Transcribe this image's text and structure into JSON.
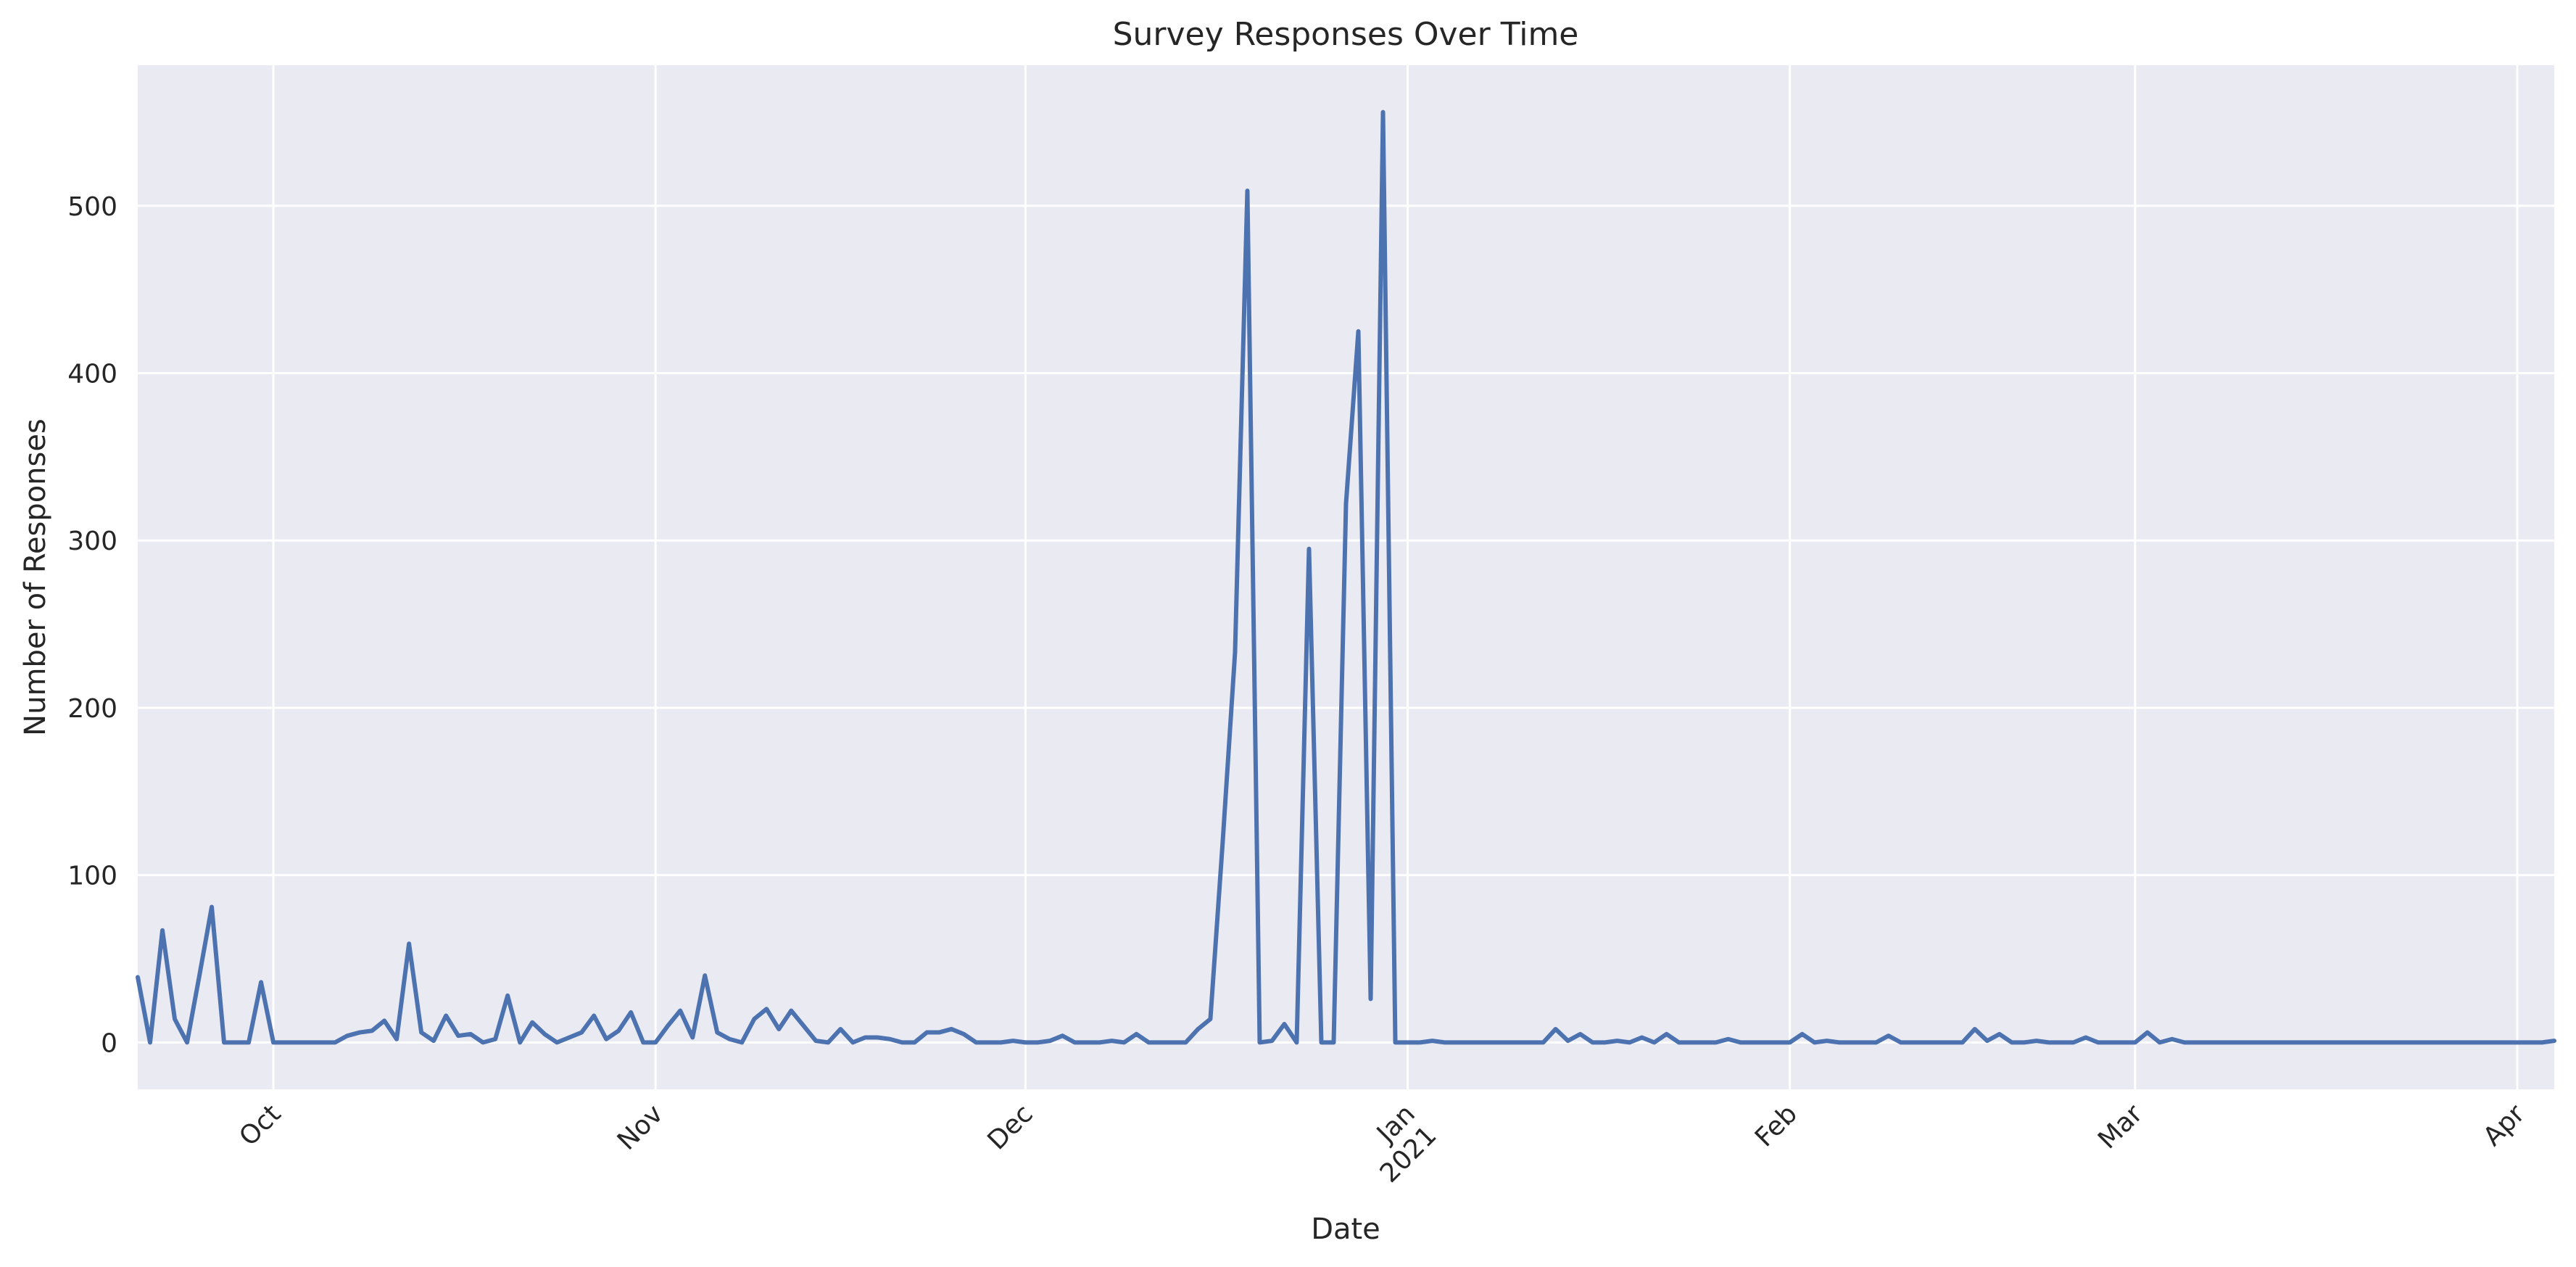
{
  "chart_data": {
    "type": "line",
    "title": "Survey Responses Over Time",
    "xlabel": "Date",
    "ylabel": "Number of Responses",
    "xlim": [
      "2020-09-20",
      "2021-04-04"
    ],
    "ylim": [
      -28,
      584
    ],
    "grid": true,
    "colors": {
      "background": "#eaeaf2",
      "line": "#4c72b0",
      "grid": "#ffffff",
      "text": "#262626"
    },
    "x_ticks": [
      {
        "date": "2020-10-01",
        "label": "Oct"
      },
      {
        "date": "2020-11-01",
        "label": "Nov"
      },
      {
        "date": "2020-12-01",
        "label": "Dec"
      },
      {
        "date": "2021-01-01",
        "label": "Jan",
        "sublabel": "2021"
      },
      {
        "date": "2021-02-01",
        "label": "Feb"
      },
      {
        "date": "2021-03-01",
        "label": "Mar"
      },
      {
        "date": "2021-04-01",
        "label": "Apr"
      }
    ],
    "y_ticks": [
      0,
      100,
      200,
      300,
      400,
      500
    ],
    "series": [
      {
        "points": [
          [
            "2020-09-20",
            39
          ],
          [
            "2020-09-21",
            0
          ],
          [
            "2020-09-22",
            67
          ],
          [
            "2020-09-23",
            14
          ],
          [
            "2020-09-24",
            0
          ],
          [
            "2020-09-25",
            40
          ],
          [
            "2020-09-26",
            81
          ],
          [
            "2020-09-27",
            0
          ],
          [
            "2020-09-28",
            0
          ],
          [
            "2020-09-29",
            0
          ],
          [
            "2020-09-30",
            36
          ],
          [
            "2020-10-01",
            0
          ],
          [
            "2020-10-02",
            0
          ],
          [
            "2020-10-03",
            0
          ],
          [
            "2020-10-04",
            0
          ],
          [
            "2020-10-05",
            0
          ],
          [
            "2020-10-06",
            0
          ],
          [
            "2020-10-07",
            4
          ],
          [
            "2020-10-08",
            6
          ],
          [
            "2020-10-09",
            7
          ],
          [
            "2020-10-10",
            13
          ],
          [
            "2020-10-11",
            2
          ],
          [
            "2020-10-12",
            59
          ],
          [
            "2020-10-13",
            6
          ],
          [
            "2020-10-14",
            1
          ],
          [
            "2020-10-15",
            16
          ],
          [
            "2020-10-16",
            4
          ],
          [
            "2020-10-17",
            5
          ],
          [
            "2020-10-18",
            0
          ],
          [
            "2020-10-19",
            2
          ],
          [
            "2020-10-20",
            28
          ],
          [
            "2020-10-21",
            0
          ],
          [
            "2020-10-22",
            12
          ],
          [
            "2020-10-23",
            5
          ],
          [
            "2020-10-24",
            0
          ],
          [
            "2020-10-25",
            3
          ],
          [
            "2020-10-26",
            6
          ],
          [
            "2020-10-27",
            16
          ],
          [
            "2020-10-28",
            2
          ],
          [
            "2020-10-29",
            7
          ],
          [
            "2020-10-30",
            18
          ],
          [
            "2020-10-31",
            0
          ],
          [
            "2020-11-01",
            0
          ],
          [
            "2020-11-02",
            10
          ],
          [
            "2020-11-03",
            19
          ],
          [
            "2020-11-04",
            3
          ],
          [
            "2020-11-05",
            40
          ],
          [
            "2020-11-06",
            6
          ],
          [
            "2020-11-07",
            2
          ],
          [
            "2020-11-08",
            0
          ],
          [
            "2020-11-09",
            14
          ],
          [
            "2020-11-10",
            20
          ],
          [
            "2020-11-11",
            8
          ],
          [
            "2020-11-12",
            19
          ],
          [
            "2020-11-13",
            10
          ],
          [
            "2020-11-14",
            1
          ],
          [
            "2020-11-15",
            0
          ],
          [
            "2020-11-16",
            8
          ],
          [
            "2020-11-17",
            0
          ],
          [
            "2020-11-18",
            3
          ],
          [
            "2020-11-19",
            3
          ],
          [
            "2020-11-20",
            2
          ],
          [
            "2020-11-21",
            0
          ],
          [
            "2020-11-22",
            0
          ],
          [
            "2020-11-23",
            6
          ],
          [
            "2020-11-24",
            6
          ],
          [
            "2020-11-25",
            8
          ],
          [
            "2020-11-26",
            5
          ],
          [
            "2020-11-27",
            0
          ],
          [
            "2020-11-28",
            0
          ],
          [
            "2020-11-29",
            0
          ],
          [
            "2020-11-30",
            1
          ],
          [
            "2020-12-01",
            0
          ],
          [
            "2020-12-02",
            0
          ],
          [
            "2020-12-03",
            1
          ],
          [
            "2020-12-04",
            4
          ],
          [
            "2020-12-05",
            0
          ],
          [
            "2020-12-06",
            0
          ],
          [
            "2020-12-07",
            0
          ],
          [
            "2020-12-08",
            1
          ],
          [
            "2020-12-09",
            0
          ],
          [
            "2020-12-10",
            5
          ],
          [
            "2020-12-11",
            0
          ],
          [
            "2020-12-12",
            0
          ],
          [
            "2020-12-13",
            0
          ],
          [
            "2020-12-14",
            0
          ],
          [
            "2020-12-15",
            8
          ],
          [
            "2020-12-16",
            14
          ],
          [
            "2020-12-17",
            120
          ],
          [
            "2020-12-18",
            233
          ],
          [
            "2020-12-19",
            509
          ],
          [
            "2020-12-20",
            0
          ],
          [
            "2020-12-21",
            1
          ],
          [
            "2020-12-22",
            11
          ],
          [
            "2020-12-23",
            0
          ],
          [
            "2020-12-24",
            295
          ],
          [
            "2020-12-25",
            0
          ],
          [
            "2020-12-26",
            0
          ],
          [
            "2020-12-27",
            322
          ],
          [
            "2020-12-28",
            425
          ],
          [
            "2020-12-29",
            26
          ],
          [
            "2020-12-30",
            556
          ],
          [
            "2020-12-31",
            0
          ],
          [
            "2021-01-01",
            0
          ],
          [
            "2021-01-02",
            0
          ],
          [
            "2021-01-03",
            1
          ],
          [
            "2021-01-04",
            0
          ],
          [
            "2021-01-05",
            0
          ],
          [
            "2021-01-06",
            0
          ],
          [
            "2021-01-07",
            0
          ],
          [
            "2021-01-08",
            0
          ],
          [
            "2021-01-09",
            0
          ],
          [
            "2021-01-10",
            0
          ],
          [
            "2021-01-11",
            0
          ],
          [
            "2021-01-12",
            0
          ],
          [
            "2021-01-13",
            8
          ],
          [
            "2021-01-14",
            1
          ],
          [
            "2021-01-15",
            5
          ],
          [
            "2021-01-16",
            0
          ],
          [
            "2021-01-17",
            0
          ],
          [
            "2021-01-18",
            1
          ],
          [
            "2021-01-19",
            0
          ],
          [
            "2021-01-20",
            3
          ],
          [
            "2021-01-21",
            0
          ],
          [
            "2021-01-22",
            5
          ],
          [
            "2021-01-23",
            0
          ],
          [
            "2021-01-24",
            0
          ],
          [
            "2021-01-25",
            0
          ],
          [
            "2021-01-26",
            0
          ],
          [
            "2021-01-27",
            2
          ],
          [
            "2021-01-28",
            0
          ],
          [
            "2021-01-29",
            0
          ],
          [
            "2021-01-30",
            0
          ],
          [
            "2021-01-31",
            0
          ],
          [
            "2021-02-01",
            0
          ],
          [
            "2021-02-02",
            5
          ],
          [
            "2021-02-03",
            0
          ],
          [
            "2021-02-04",
            1
          ],
          [
            "2021-02-05",
            0
          ],
          [
            "2021-02-06",
            0
          ],
          [
            "2021-02-07",
            0
          ],
          [
            "2021-02-08",
            0
          ],
          [
            "2021-02-09",
            4
          ],
          [
            "2021-02-10",
            0
          ],
          [
            "2021-02-11",
            0
          ],
          [
            "2021-02-12",
            0
          ],
          [
            "2021-02-13",
            0
          ],
          [
            "2021-02-14",
            0
          ],
          [
            "2021-02-15",
            0
          ],
          [
            "2021-02-16",
            8
          ],
          [
            "2021-02-17",
            1
          ],
          [
            "2021-02-18",
            5
          ],
          [
            "2021-02-19",
            0
          ],
          [
            "2021-02-20",
            0
          ],
          [
            "2021-02-21",
            1
          ],
          [
            "2021-02-22",
            0
          ],
          [
            "2021-02-23",
            0
          ],
          [
            "2021-02-24",
            0
          ],
          [
            "2021-02-25",
            3
          ],
          [
            "2021-02-26",
            0
          ],
          [
            "2021-02-27",
            0
          ],
          [
            "2021-02-28",
            0
          ],
          [
            "2021-03-01",
            0
          ],
          [
            "2021-03-02",
            6
          ],
          [
            "2021-03-03",
            0
          ],
          [
            "2021-03-04",
            2
          ],
          [
            "2021-03-05",
            0
          ],
          [
            "2021-03-06",
            0
          ],
          [
            "2021-03-07",
            0
          ],
          [
            "2021-03-08",
            0
          ],
          [
            "2021-03-09",
            0
          ],
          [
            "2021-03-10",
            0
          ],
          [
            "2021-03-11",
            0
          ],
          [
            "2021-03-12",
            0
          ],
          [
            "2021-03-13",
            0
          ],
          [
            "2021-03-14",
            0
          ],
          [
            "2021-03-15",
            0
          ],
          [
            "2021-03-16",
            0
          ],
          [
            "2021-03-17",
            0
          ],
          [
            "2021-03-18",
            0
          ],
          [
            "2021-03-19",
            0
          ],
          [
            "2021-03-20",
            0
          ],
          [
            "2021-03-21",
            0
          ],
          [
            "2021-03-22",
            0
          ],
          [
            "2021-03-23",
            0
          ],
          [
            "2021-03-24",
            0
          ],
          [
            "2021-03-25",
            0
          ],
          [
            "2021-03-26",
            0
          ],
          [
            "2021-03-27",
            0
          ],
          [
            "2021-03-28",
            0
          ],
          [
            "2021-03-29",
            0
          ],
          [
            "2021-03-30",
            0
          ],
          [
            "2021-03-31",
            0
          ],
          [
            "2021-04-01",
            0
          ],
          [
            "2021-04-02",
            0
          ],
          [
            "2021-04-03",
            0
          ],
          [
            "2021-04-04",
            1
          ]
        ]
      }
    ]
  }
}
